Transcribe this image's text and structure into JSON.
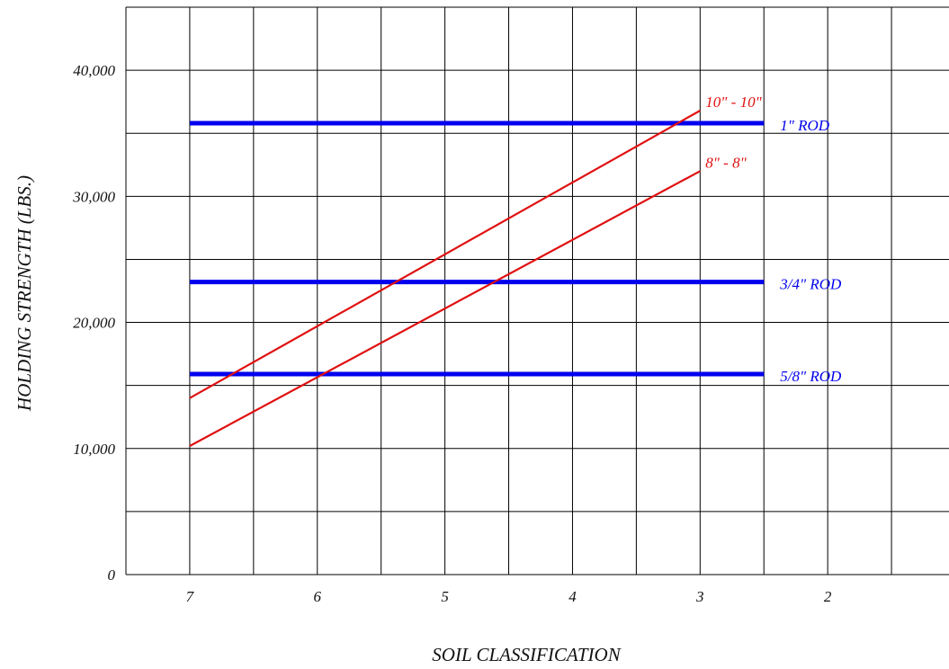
{
  "chart_data": {
    "type": "line",
    "title": "",
    "xlabel": "SOIL CLASSIFICATION",
    "ylabel": "HOLDING STRENGTH (LBS.)",
    "x_ticks": [
      "7",
      "6",
      "5",
      "4",
      "3",
      "2"
    ],
    "y_ticks": [
      {
        "value": 0,
        "label": "0"
      },
      {
        "value": 10000,
        "label": "10,000"
      },
      {
        "value": 20000,
        "label": "20,000"
      },
      {
        "value": 30000,
        "label": "30,000"
      },
      {
        "value": 40000,
        "label": "40,000"
      }
    ],
    "xlim": [
      7.5,
      1.0
    ],
    "ylim": [
      0,
      45000
    ],
    "x_gridlines": [
      7.5,
      7.0,
      6.5,
      6.0,
      5.5,
      5.0,
      4.5,
      4.0,
      3.5,
      3.0,
      2.5,
      2.0,
      1.5,
      1.0
    ],
    "y_gridlines": [
      0,
      5000,
      10000,
      15000,
      20000,
      25000,
      30000,
      35000,
      40000,
      45000
    ],
    "grid": true,
    "series": [
      {
        "name": "1\" ROD",
        "color": "#0000ee",
        "x": [
          7,
          2.5
        ],
        "y": [
          35800,
          35800
        ]
      },
      {
        "name": "3/4\" ROD",
        "color": "#0000ee",
        "x": [
          7,
          2.5
        ],
        "y": [
          23200,
          23200
        ]
      },
      {
        "name": "5/8\" ROD",
        "color": "#0000ee",
        "x": [
          7,
          2.5
        ],
        "y": [
          15900,
          15900
        ]
      },
      {
        "name": "10\" - 10\"",
        "color": "#e01010",
        "x": [
          7,
          3
        ],
        "y": [
          14000,
          36800
        ]
      },
      {
        "name": "8\" - 8\"",
        "color": "#e01010",
        "x": [
          7,
          3
        ],
        "y": [
          10200,
          32000
        ]
      }
    ]
  }
}
